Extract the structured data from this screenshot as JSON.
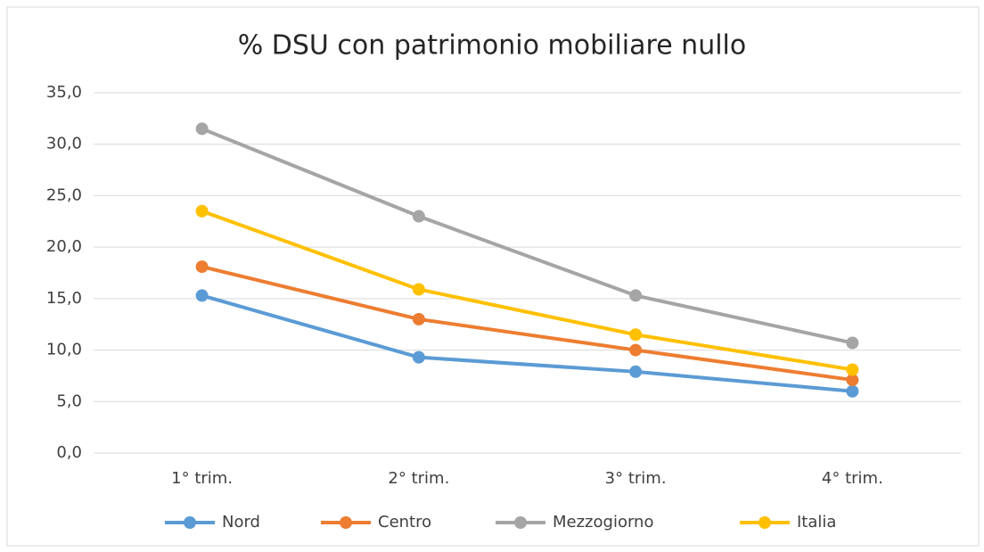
{
  "chart_data": {
    "type": "line",
    "title": "% DSU con patrimonio mobiliare nullo",
    "categories": [
      "1° trim.",
      "2° trim.",
      "3° trim.",
      "4° trim."
    ],
    "series": [
      {
        "name": "Nord",
        "color": "#5b9bd5",
        "values": [
          15.3,
          9.3,
          7.9,
          6.0
        ]
      },
      {
        "name": "Centro",
        "color": "#ed7d31",
        "values": [
          18.1,
          13.0,
          10.0,
          7.1
        ]
      },
      {
        "name": "Mezzogiorno",
        "color": "#a5a5a5",
        "values": [
          31.5,
          23.0,
          15.3,
          10.7
        ]
      },
      {
        "name": "Italia",
        "color": "#ffc000",
        "values": [
          23.5,
          15.9,
          11.5,
          8.1
        ]
      }
    ],
    "ylim": [
      0,
      35
    ],
    "yticks": [
      {
        "value": 0,
        "label": "0,0"
      },
      {
        "value": 5,
        "label": "5,0"
      },
      {
        "value": 10,
        "label": "10,0"
      },
      {
        "value": 15,
        "label": "15,0"
      },
      {
        "value": 20,
        "label": "20,0"
      },
      {
        "value": 25,
        "label": "25,0"
      },
      {
        "value": 30,
        "label": "30,0"
      },
      {
        "value": 35,
        "label": "35,0"
      }
    ],
    "grid": true,
    "legend": "bottom"
  }
}
